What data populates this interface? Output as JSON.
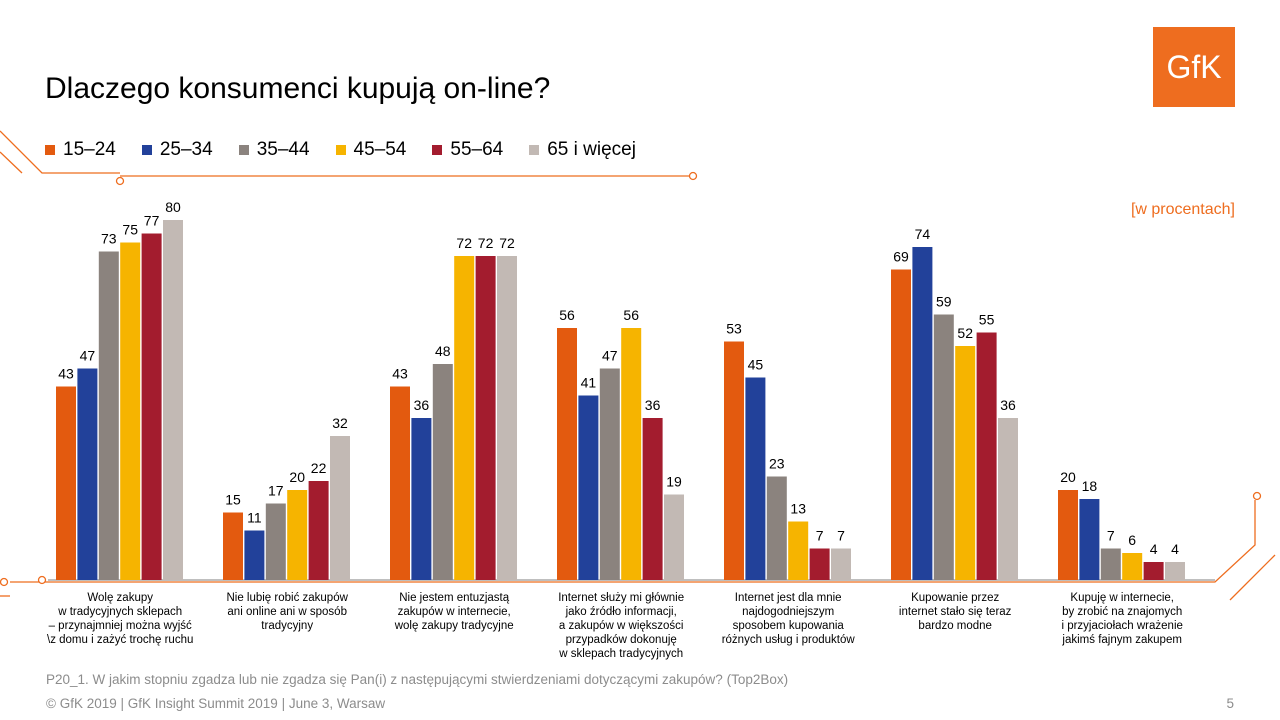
{
  "title": "Dlaczego konsumenci kupują on-line?",
  "logo_text": "GfK",
  "unit_note": "[w procentach]",
  "footnote": "P20_1. W jakim stopniu zgadza lub nie zgadza się Pan(i) z następującymi stwierdzeniami dotyczącymi zakupów? (Top2Box)",
  "footer": "© GfK 2019 | GfK Insight Summit 2019 | June 3, Warsaw",
  "page_number": "5",
  "colors": {
    "accent": "#ee6d1f",
    "line": "#ee6d1f"
  },
  "chart_data": {
    "type": "bar",
    "categories": [
      "Wolę zakupy\nw tradycyjnych sklepach\n– przynajmniej można wyjść\n\\z domu i zażyć trochę ruchu",
      "Nie lubię robić zakupów\nani online ani w sposób\ntradycyjny",
      "Nie jestem entuzjastą\nzakupów w internecie,\nwolę zakupy tradycyjne",
      "Internet służy mi głównie\njako źródło informacji,\na zakupów w większości\nprzypadków dokonuję\nw sklepach tradycyjnych",
      "Internet jest dla mnie\nnajdogodniejszym\nsposobem kupowania\nróżnych usług i produktów",
      "Kupowanie przez\ninternet stało się teraz\nbardzo modne",
      "Kupuję w internecie,\nby zrobić na znajomych\ni przyjaciołach wrażenie\njakimś fajnym zakupem"
    ],
    "series": [
      {
        "name": "15–24",
        "color": "#e35a0f",
        "values": [
          43,
          15,
          43,
          56,
          53,
          69,
          20
        ]
      },
      {
        "name": "25–34",
        "color": "#22419a",
        "values": [
          47,
          11,
          36,
          41,
          45,
          74,
          18
        ]
      },
      {
        "name": "35–44",
        "color": "#8b837e",
        "values": [
          73,
          17,
          48,
          47,
          23,
          59,
          7
        ]
      },
      {
        "name": "45–54",
        "color": "#f6b400",
        "values": [
          75,
          20,
          72,
          56,
          13,
          52,
          6
        ]
      },
      {
        "name": "55–64",
        "color": "#a31c2e",
        "values": [
          77,
          22,
          72,
          36,
          7,
          55,
          4
        ]
      },
      {
        "name": "65 i więcej",
        "color": "#c2b9b4",
        "values": [
          80,
          32,
          72,
          19,
          7,
          36,
          4
        ]
      }
    ],
    "ylim": [
      0,
      80
    ],
    "grid": false,
    "legend_position": "top-left",
    "data_labels": true
  }
}
